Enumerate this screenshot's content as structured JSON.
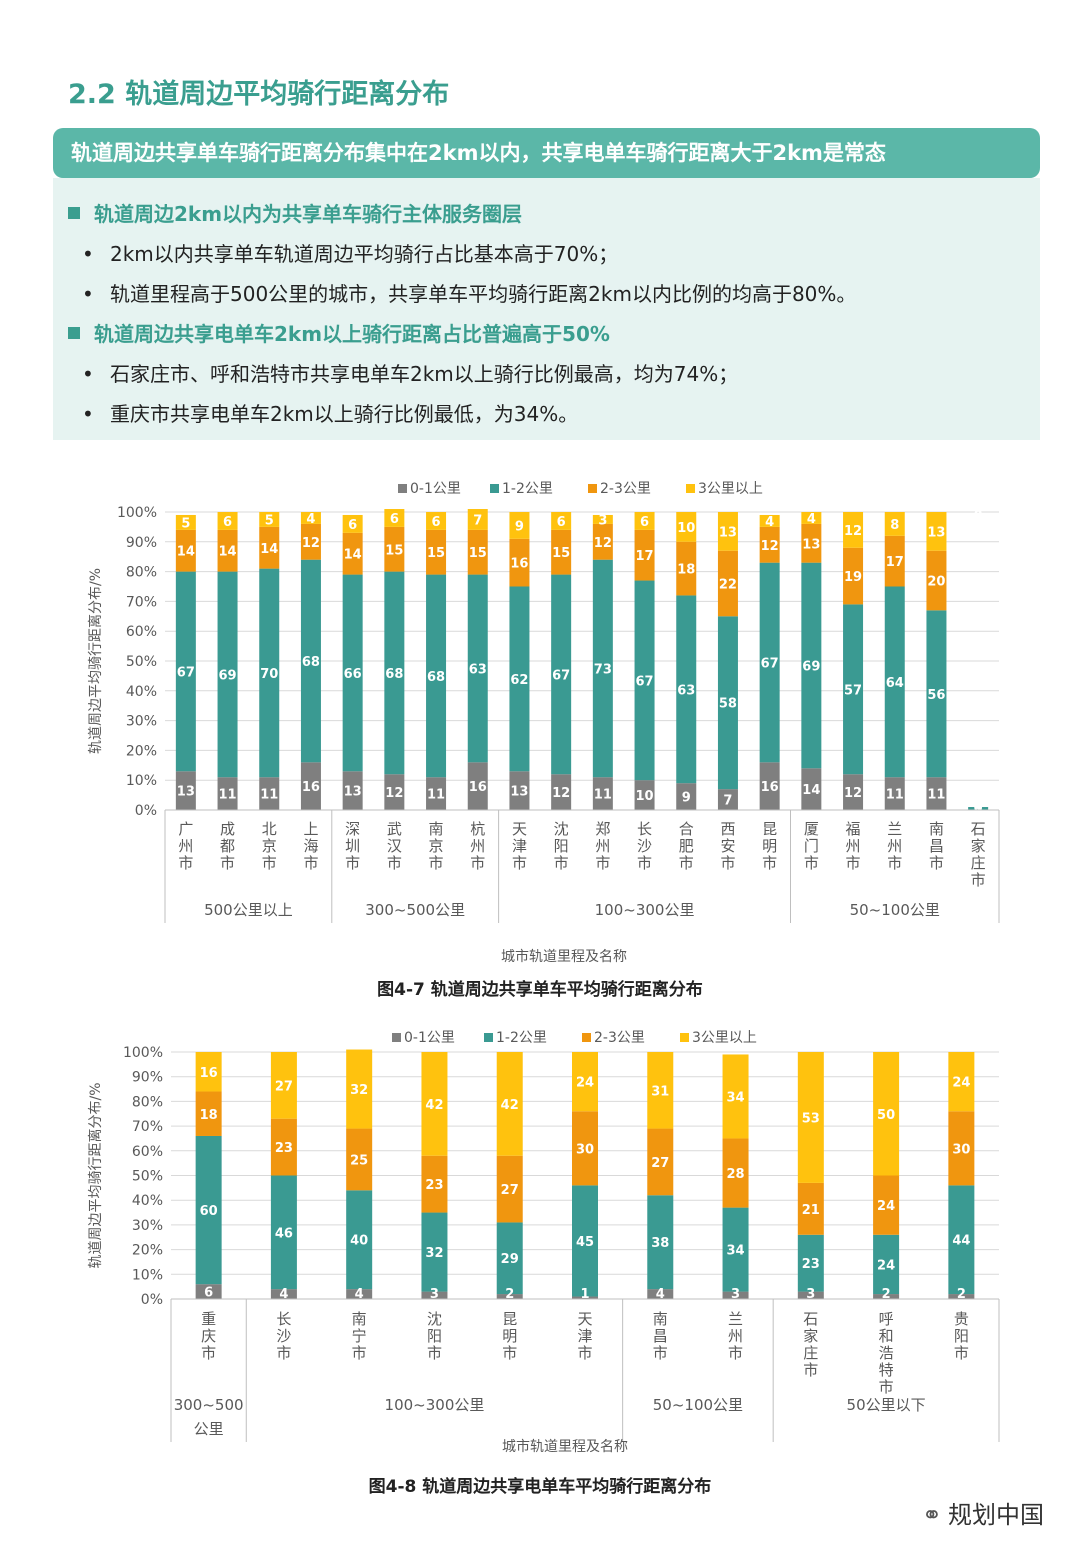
{
  "section_title": "2.2 轨道周边平均骑行距离分布",
  "banner": "轨道周边共享单车骑行距离分布集中在2km以内，共享电单车骑行距离大于2km是常态",
  "points": [
    {
      "kind": "head",
      "text": "轨道周边2km以内为共享单车骑行主体服务圈层"
    },
    {
      "kind": "bullet",
      "text": "2km以内共享单车轨道周边平均骑行占比基本高于70%；"
    },
    {
      "kind": "bullet",
      "text": "轨道里程高于500公里的城市，共享单车平均骑行距离2km以内比例的均高于80%。"
    },
    {
      "kind": "head",
      "text": "轨道周边共享电单车2km以上骑行距离占比普遍高于50%"
    },
    {
      "kind": "bullet",
      "text": "石家庄市、呼和浩特市共享电单车2km以上骑行比例最高，均为74%；"
    },
    {
      "kind": "bullet",
      "text": "重庆市共享电单车2km以上骑行比例最低，为34%。"
    }
  ],
  "bullet_glyph": "•",
  "colors": {
    "s0": "#7f7f7f",
    "s1": "#3a9a92",
    "s2": "#f0960f",
    "s3": "#ffc20e",
    "accent": "#3a9e8f"
  },
  "chart_data": [
    {
      "type": "bar",
      "stacked": true,
      "caption": "图4-7 轨道周边共享单车平均骑行距离分布",
      "ylabel": "轨道周边平均骑行距离分布/%",
      "xlabel": "城市轨道里程及名称",
      "ylim": [
        0,
        100
      ],
      "yticks": [
        "0%",
        "10%",
        "20%",
        "30%",
        "40%",
        "50%",
        "60%",
        "70%",
        "80%",
        "90%",
        "100%"
      ],
      "legend_position": "top",
      "categories": [
        "广州市",
        "成都市",
        "北京市",
        "上海市",
        "深圳市",
        "武汉市",
        "南京市",
        "杭州市",
        "天津市",
        "沈阳市",
        "郑州市",
        "长沙市",
        "合肥市",
        "西安市",
        "昆明市",
        "厦门市",
        "福州市",
        "兰州市",
        "南昌市",
        "石家庄市"
      ],
      "groups": [
        {
          "label": "500公里以上",
          "count": 4
        },
        {
          "label": "300~500公里",
          "count": 4
        },
        {
          "label": "100~300公里",
          "count": 7
        },
        {
          "label": "50~100公里",
          "count": 5
        }
      ],
      "series": [
        {
          "name": "0-1公里",
          "values": [
            13,
            11,
            11,
            16,
            13,
            12,
            11,
            16,
            13,
            12,
            11,
            10,
            9,
            7,
            16,
            14,
            12,
            11,
            11,
            0
          ]
        },
        {
          "name": "1-2公里",
          "values": [
            67,
            69,
            70,
            68,
            66,
            68,
            68,
            63,
            62,
            67,
            73,
            67,
            63,
            58,
            67,
            69,
            57,
            64,
            56,
            1
          ]
        },
        {
          "name": "2-3公里",
          "values": [
            14,
            14,
            14,
            12,
            14,
            15,
            15,
            15,
            16,
            15,
            12,
            17,
            18,
            22,
            12,
            13,
            19,
            17,
            20,
            0
          ]
        },
        {
          "name": "3公里以上",
          "values": [
            5,
            6,
            5,
            4,
            6,
            6,
            6,
            7,
            9,
            6,
            3,
            6,
            10,
            13,
            4,
            4,
            12,
            8,
            13,
            0
          ]
        }
      ]
    },
    {
      "type": "bar",
      "stacked": true,
      "caption": "图4-8 轨道周边共享电单车平均骑行距离分布",
      "ylabel": "轨道周边平均骑行距离分布/%",
      "xlabel": "城市轨道里程及名称",
      "ylim": [
        0,
        100
      ],
      "yticks": [
        "0%",
        "10%",
        "20%",
        "30%",
        "40%",
        "50%",
        "60%",
        "70%",
        "80%",
        "90%",
        "100%"
      ],
      "legend_position": "top",
      "categories": [
        "重庆市",
        "长沙市",
        "南宁市",
        "沈阳市",
        "昆明市",
        "天津市",
        "南昌市",
        "兰州市",
        "石家庄市",
        "呼和浩特市",
        "贵阳市"
      ],
      "groups": [
        {
          "label": "300~500公里",
          "count": 1
        },
        {
          "label": "100~300公里",
          "count": 5
        },
        {
          "label": "50~100公里",
          "count": 2
        },
        {
          "label": "50公里以下",
          "count": 3
        }
      ],
      "series": [
        {
          "name": "0-1公里",
          "values": [
            6,
            4,
            4,
            3,
            2,
            1,
            4,
            3,
            3,
            2,
            2
          ]
        },
        {
          "name": "1-2公里",
          "values": [
            60,
            46,
            40,
            32,
            29,
            45,
            38,
            34,
            23,
            24,
            44
          ]
        },
        {
          "name": "2-3公里",
          "values": [
            18,
            23,
            25,
            23,
            27,
            30,
            27,
            28,
            21,
            24,
            30
          ]
        },
        {
          "name": "3公里以上",
          "values": [
            16,
            27,
            32,
            42,
            42,
            24,
            31,
            34,
            53,
            50,
            24
          ]
        }
      ]
    }
  ],
  "watermark": "规划中国",
  "watermark_icon": "wechat-icon"
}
